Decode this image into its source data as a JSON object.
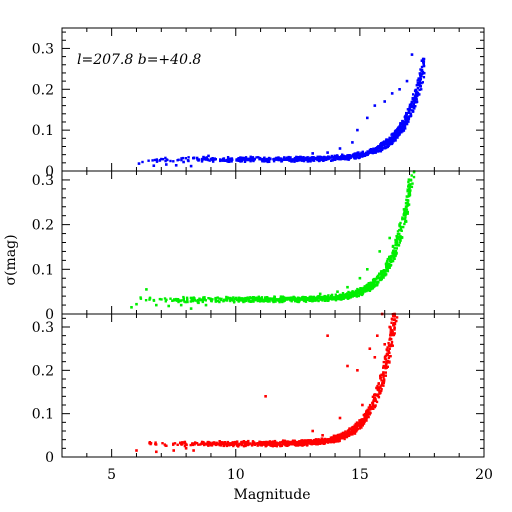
{
  "chart_data": {
    "type": "scatter",
    "xlabel": "Magnitude",
    "ylabel": "σ(mag)",
    "xlim": [
      3,
      20
    ],
    "x_ticks": [
      5,
      10,
      15,
      20
    ],
    "y_ticks": [
      0,
      0.1,
      0.2,
      0.3
    ],
    "y_tick_labels": [
      "0",
      "0.1",
      "0.2",
      "0.3"
    ],
    "grid": false,
    "annotation": "l=207.8 b=+40.8",
    "panels": [
      {
        "name": "",
        "color": "#0000ff",
        "ylim": [
          0,
          0.35
        ],
        "model": {
          "mag_start": 5.8,
          "mag_end": 17.6,
          "floor": 0.028,
          "mag_ref": 17.4,
          "sigma_ref": 0.21,
          "scale": 0.85
        },
        "points": [
          [
            6.1,
            0.018
          ],
          [
            6.7,
            0.013
          ],
          [
            7.2,
            0.016
          ],
          [
            7.6,
            0.014
          ],
          [
            7.9,
            0.022
          ],
          [
            8.2,
            0.012
          ],
          [
            8.5,
            0.026
          ],
          [
            8.7,
            0.034
          ],
          [
            8.9,
            0.037
          ],
          [
            12.6,
            0.034
          ],
          [
            13.1,
            0.043
          ],
          [
            13.7,
            0.045
          ],
          [
            14.2,
            0.055
          ],
          [
            14.7,
            0.07
          ],
          [
            14.9,
            0.1
          ],
          [
            15.3,
            0.13
          ],
          [
            15.6,
            0.16
          ],
          [
            16.0,
            0.17
          ],
          [
            16.3,
            0.19
          ],
          [
            16.6,
            0.2
          ],
          [
            16.9,
            0.22
          ],
          [
            17.1,
            0.285
          ],
          [
            17.5,
            0.27
          ]
        ]
      },
      {
        "name": "",
        "color": "#00ee00",
        "ylim": [
          0,
          0.32
        ],
        "model": {
          "mag_start": 5.7,
          "mag_end": 17.2,
          "floor": 0.032,
          "mag_ref": 16.9,
          "sigma_ref": 0.245,
          "scale": 0.75
        },
        "points": [
          [
            5.8,
            0.015
          ],
          [
            6.0,
            0.022
          ],
          [
            6.4,
            0.055
          ],
          [
            6.8,
            0.02
          ],
          [
            7.3,
            0.018
          ],
          [
            7.8,
            0.02
          ],
          [
            8.2,
            0.012
          ],
          [
            8.5,
            0.025
          ],
          [
            8.8,
            0.02
          ],
          [
            13.4,
            0.045
          ],
          [
            14.1,
            0.05
          ],
          [
            14.5,
            0.06
          ],
          [
            15.0,
            0.08
          ],
          [
            15.3,
            0.1
          ],
          [
            15.8,
            0.14
          ],
          [
            16.2,
            0.17
          ],
          [
            16.6,
            0.2
          ],
          [
            16.8,
            0.23
          ],
          [
            17.0,
            0.27
          ],
          [
            17.05,
            0.3
          ]
        ]
      },
      {
        "name": "",
        "color": "#ff0000",
        "ylim": [
          0,
          0.33
        ],
        "model": {
          "mag_start": 5.8,
          "mag_end": 16.5,
          "floor": 0.03,
          "mag_ref": 16.4,
          "sigma_ref": 0.32,
          "scale": 0.75
        },
        "points": [
          [
            6.0,
            0.015
          ],
          [
            6.8,
            0.012
          ],
          [
            7.5,
            0.015
          ],
          [
            8.0,
            0.02
          ],
          [
            8.3,
            0.015
          ],
          [
            11.2,
            0.14
          ],
          [
            13.1,
            0.06
          ],
          [
            13.5,
            0.05
          ],
          [
            13.7,
            0.28
          ],
          [
            14.2,
            0.09
          ],
          [
            14.5,
            0.21
          ],
          [
            14.9,
            0.2
          ],
          [
            15.1,
            0.12
          ],
          [
            15.4,
            0.25
          ],
          [
            15.6,
            0.23
          ],
          [
            15.7,
            0.28
          ],
          [
            15.9,
            0.33
          ],
          [
            16.0,
            0.26
          ],
          [
            16.2,
            0.3
          ],
          [
            16.4,
            0.33
          ]
        ]
      }
    ]
  }
}
